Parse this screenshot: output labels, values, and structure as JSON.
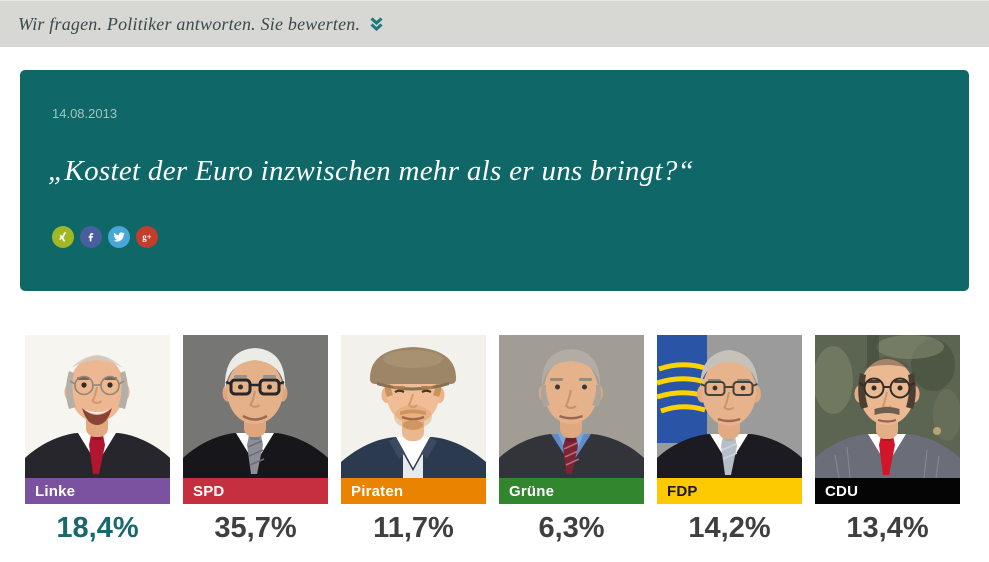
{
  "site": {
    "tagline": "Wir fragen. Politiker antworten. Sie bewerten.",
    "tagline_color": "#3c4a4a",
    "topbar_bg": "#d7d7d4",
    "chevron_icon": "double-chevron-down",
    "chevron_color": "#1a7a7c"
  },
  "banner": {
    "bg_color": "#0f6867",
    "date": "14.08.2013",
    "date_color": "#a3c3c2",
    "quote": "„Kostet der Euro inzwischen mehr als er uns bringt?“",
    "quote_color": "#ffffff",
    "share_icons": [
      {
        "name": "xing",
        "color": "#9fb823"
      },
      {
        "name": "facebook",
        "color": "#4a5d9e"
      },
      {
        "name": "twitter",
        "color": "#47a7d6"
      },
      {
        "name": "googleplus",
        "color": "#c23d2c"
      }
    ]
  },
  "poll": {
    "parties": [
      {
        "party": "Linke",
        "percent": "18,4%",
        "band_color": "#7b52a0",
        "label_color": "#ffffff",
        "percent_color": "#16696c",
        "avatar": "linke"
      },
      {
        "party": "SPD",
        "percent": "35,7%",
        "band_color": "#c62f3e",
        "label_color": "#ffffff",
        "percent_color": "#3f3f3f",
        "avatar": "spd"
      },
      {
        "party": "Piraten",
        "percent": "11,7%",
        "band_color": "#e98300",
        "label_color": "#ffffff",
        "percent_color": "#3f3f3f",
        "avatar": "piraten"
      },
      {
        "party": "Grüne",
        "percent": "6,3%",
        "band_color": "#31862e",
        "label_color": "#ffffff",
        "percent_color": "#3f3f3f",
        "avatar": "gruene"
      },
      {
        "party": "FDP",
        "percent": "14,2%",
        "band_color": "#fdc900",
        "label_color": "#1a1a1a",
        "percent_color": "#3f3f3f",
        "avatar": "fdp"
      },
      {
        "party": "CDU",
        "percent": "13,4%",
        "band_color": "#050505",
        "label_color": "#ffffff",
        "percent_color": "#3f3f3f",
        "avatar": "cdu"
      }
    ]
  }
}
